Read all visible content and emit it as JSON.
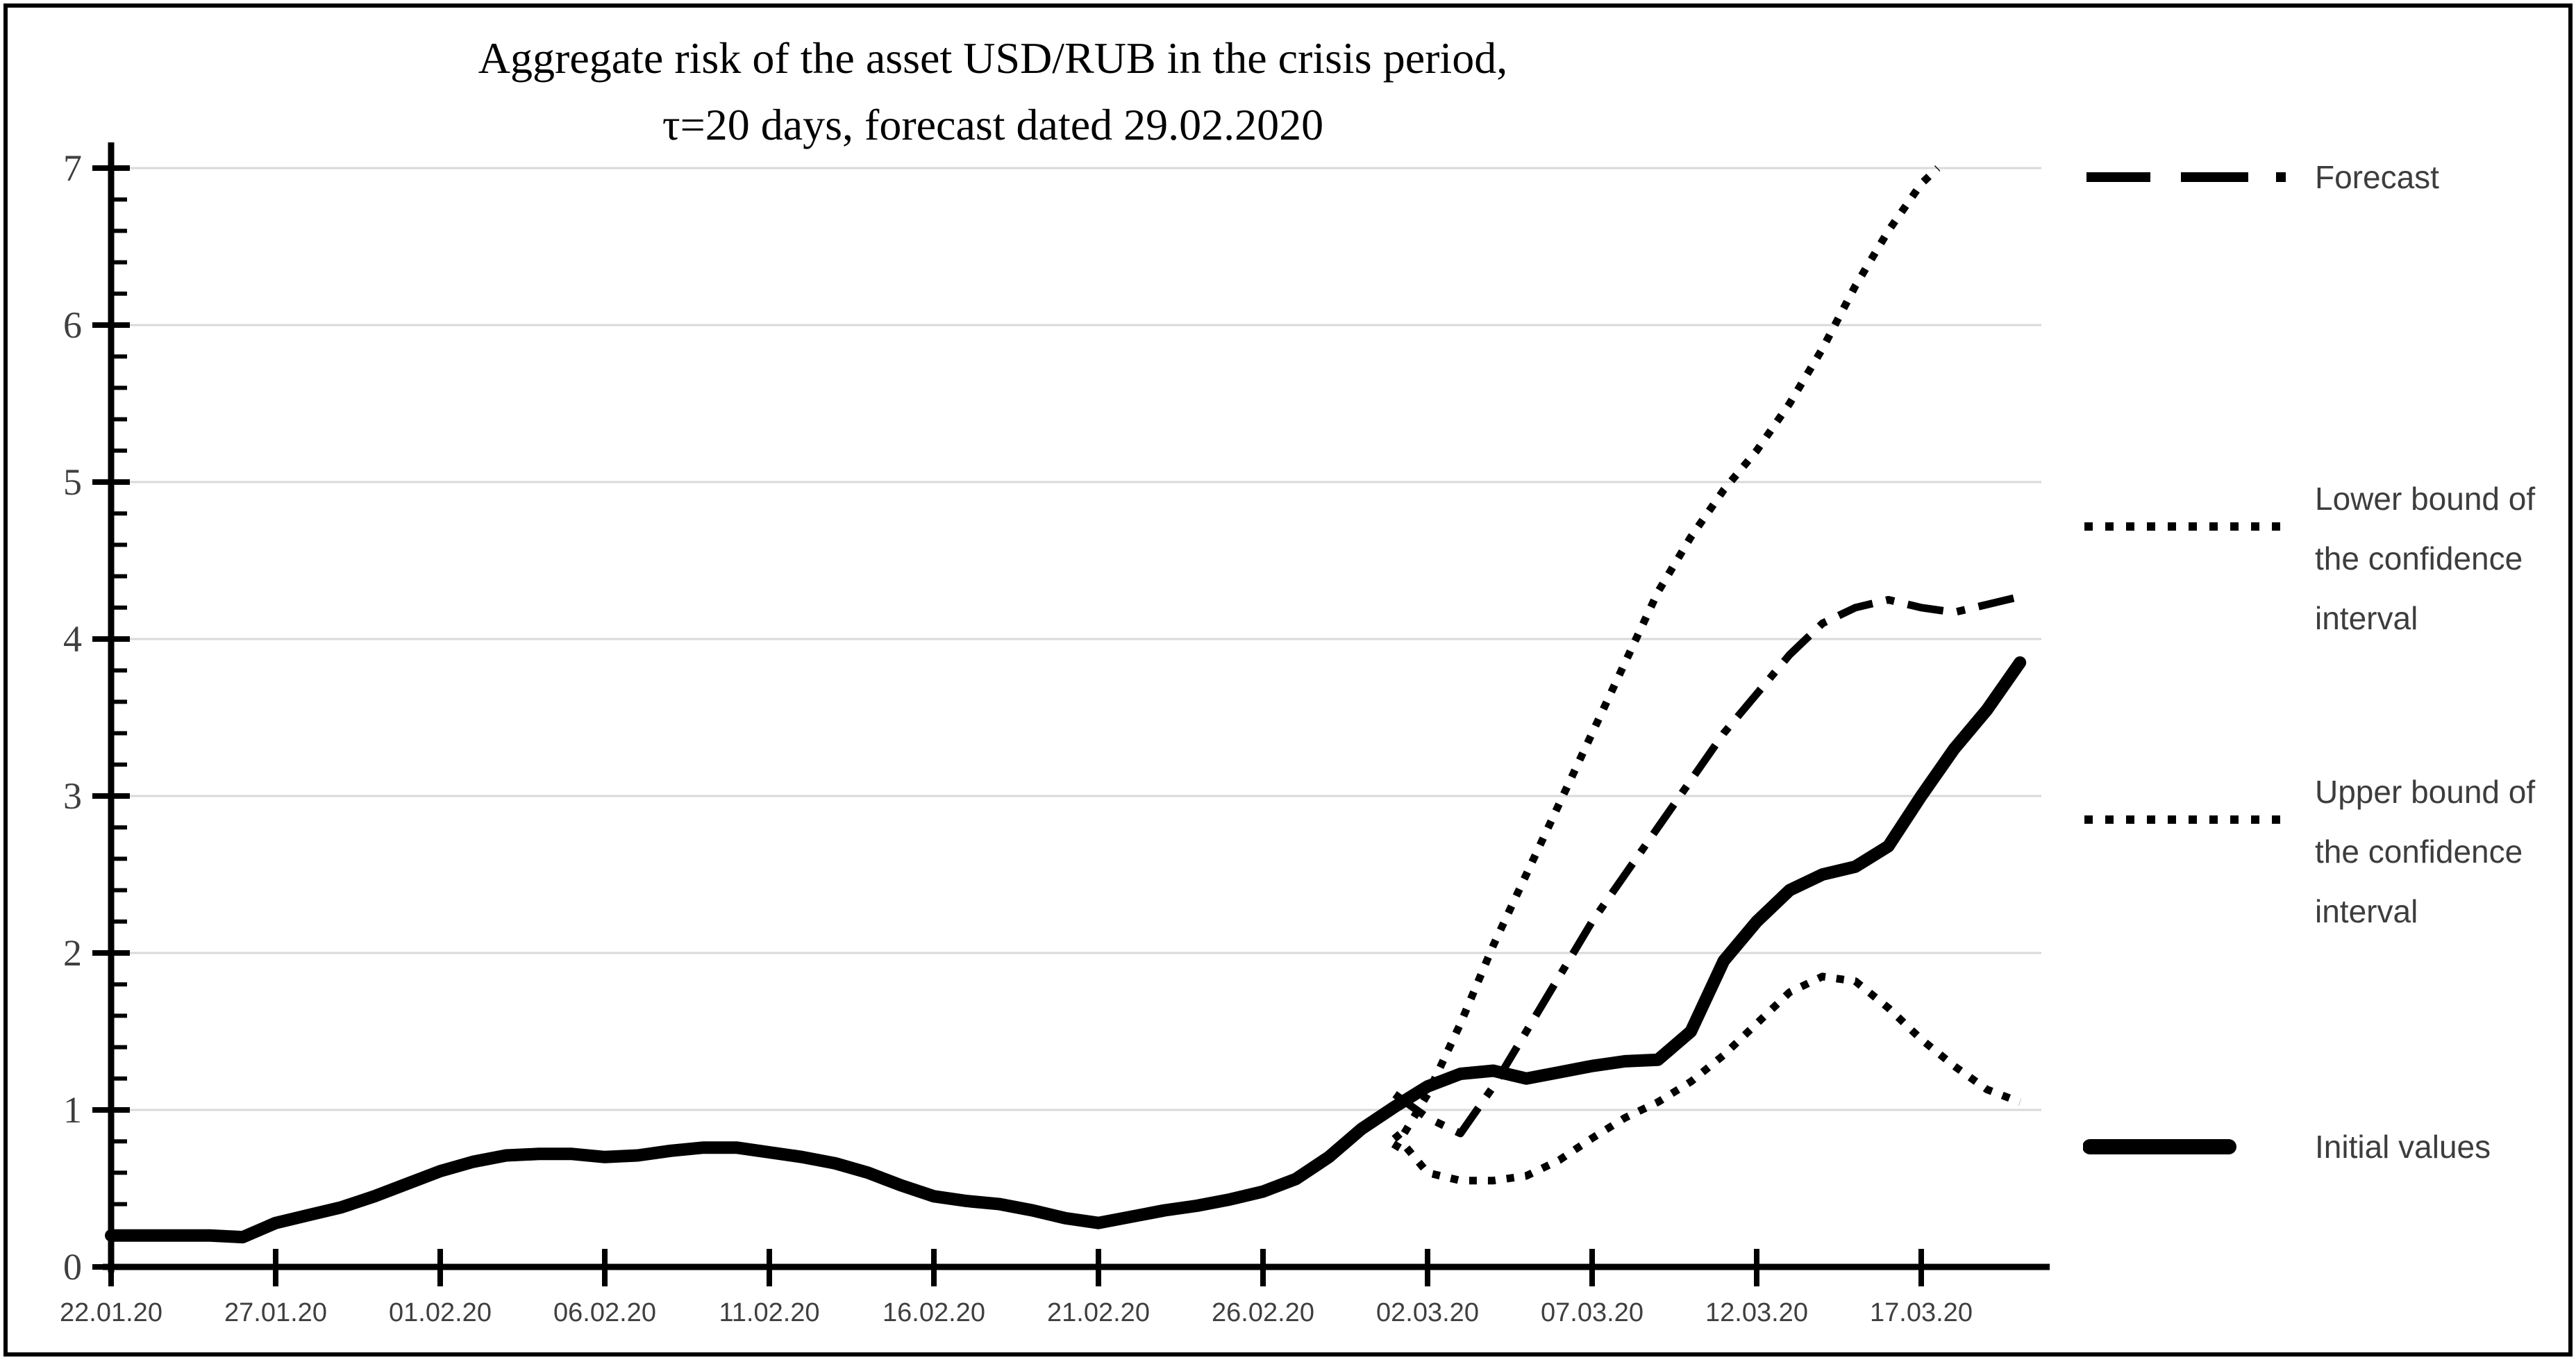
{
  "title": {
    "line1": "Aggregate risk of the asset USD/RUB  in the crisis period,",
    "line2": "τ=20  days, forecast dated 29.02.2020"
  },
  "legend": {
    "items": [
      {
        "name": "forecast",
        "label": "Forecast",
        "style": "long-dash-dot"
      },
      {
        "name": "lower-bound",
        "label": "Lower bound of the confidence interval",
        "style": "dotted"
      },
      {
        "name": "upper-bound",
        "label": "Upper bound of the confidence interval",
        "style": "dotted"
      },
      {
        "name": "initial-values",
        "label": "Initial values",
        "style": "solid-thick"
      }
    ]
  },
  "colors": {
    "series": "#000000",
    "grid": "#d9d9d9",
    "axis": "#000000",
    "tick_label": "#3f3f3f",
    "legend_text": "#3d3d3d",
    "background": "#ffffff"
  },
  "chart_data": {
    "type": "line",
    "title": "Aggregate risk of the asset USD/RUB in the crisis period, τ=20 days, forecast dated 29.02.2020",
    "xlabel": "",
    "ylabel": "",
    "x_axis": {
      "unit": "days since 22.01.2020",
      "tick_positions_days": [
        0,
        5,
        10,
        15,
        20,
        25,
        30,
        35,
        40,
        45,
        50,
        55
      ],
      "tick_labels": [
        "22.01.20",
        "27.01.20",
        "01.02.20",
        "06.02.20",
        "11.02.20",
        "16.02.20",
        "21.02.20",
        "26.02.20",
        "02.03.20",
        "07.03.20",
        "12.03.20",
        "17.03.20"
      ]
    },
    "y_axis": {
      "min": 0,
      "max": 7,
      "tick_step": 1,
      "minor_tick_step": 0.2,
      "tick_labels": [
        "0",
        "1",
        "2",
        "3",
        "4",
        "5",
        "6",
        "7"
      ]
    },
    "grid": "horizontal",
    "legend_position": "right",
    "series": [
      {
        "name": "Initial values",
        "line_style": "solid",
        "line_width": "thick",
        "x": [
          0,
          1,
          2,
          3,
          4,
          5,
          6,
          7,
          8,
          9,
          10,
          11,
          12,
          13,
          14,
          15,
          16,
          17,
          18,
          19,
          20,
          21,
          22,
          23,
          24,
          25,
          26,
          27,
          28,
          29,
          30,
          31,
          32,
          33,
          34,
          35,
          36,
          37,
          38,
          39,
          40,
          41,
          42,
          43,
          44,
          45,
          46,
          47,
          48,
          49,
          50,
          51,
          52,
          53,
          54,
          55,
          56,
          57,
          58
        ],
        "values": [
          0.2,
          0.2,
          0.2,
          0.2,
          0.19,
          0.28,
          0.33,
          0.38,
          0.45,
          0.53,
          0.61,
          0.67,
          0.71,
          0.72,
          0.72,
          0.7,
          0.71,
          0.74,
          0.76,
          0.76,
          0.73,
          0.7,
          0.66,
          0.6,
          0.52,
          0.45,
          0.42,
          0.4,
          0.36,
          0.31,
          0.28,
          0.32,
          0.36,
          0.39,
          0.43,
          0.48,
          0.56,
          0.7,
          0.88,
          1.02,
          1.15,
          1.23,
          1.25,
          1.2,
          1.24,
          1.28,
          1.31,
          1.32,
          1.5,
          1.95,
          2.2,
          2.4,
          2.5,
          2.55,
          2.68,
          3.0,
          3.3,
          3.55,
          3.85
        ]
      },
      {
        "name": "Forecast",
        "line_style": "long-dash-dot",
        "line_width": "medium",
        "x": [
          39,
          40,
          41,
          42,
          43,
          44,
          45,
          46,
          47,
          48,
          49,
          50,
          51,
          52,
          53,
          54,
          55,
          56,
          57,
          58
        ],
        "values": [
          1.1,
          0.95,
          0.85,
          1.15,
          1.5,
          1.85,
          2.2,
          2.5,
          2.8,
          3.1,
          3.4,
          3.65,
          3.9,
          4.1,
          4.2,
          4.25,
          4.2,
          4.17,
          4.22,
          4.27
        ]
      },
      {
        "name": "Lower bound of the confidence interval",
        "line_style": "dotted",
        "line_width": "medium",
        "x": [
          39,
          40,
          41,
          42,
          43,
          44,
          45,
          46,
          47,
          48,
          49,
          50,
          51,
          52,
          53,
          54,
          55,
          56,
          57,
          58
        ],
        "values": [
          0.85,
          0.6,
          0.55,
          0.55,
          0.58,
          0.68,
          0.82,
          0.95,
          1.05,
          1.18,
          1.35,
          1.55,
          1.75,
          1.85,
          1.82,
          1.65,
          1.45,
          1.28,
          1.13,
          1.05
        ]
      },
      {
        "name": "Upper bound of the confidence interval",
        "line_style": "dotted",
        "line_width": "medium",
        "x": [
          39,
          40,
          41,
          42,
          43,
          44,
          45,
          46,
          47,
          48,
          49,
          50,
          51,
          52,
          53,
          54,
          55,
          55.5
        ],
        "values": [
          0.75,
          1.1,
          1.55,
          2.05,
          2.5,
          2.95,
          3.4,
          3.85,
          4.3,
          4.65,
          4.95,
          5.2,
          5.5,
          5.85,
          6.25,
          6.6,
          6.9,
          7.0
        ]
      }
    ]
  }
}
